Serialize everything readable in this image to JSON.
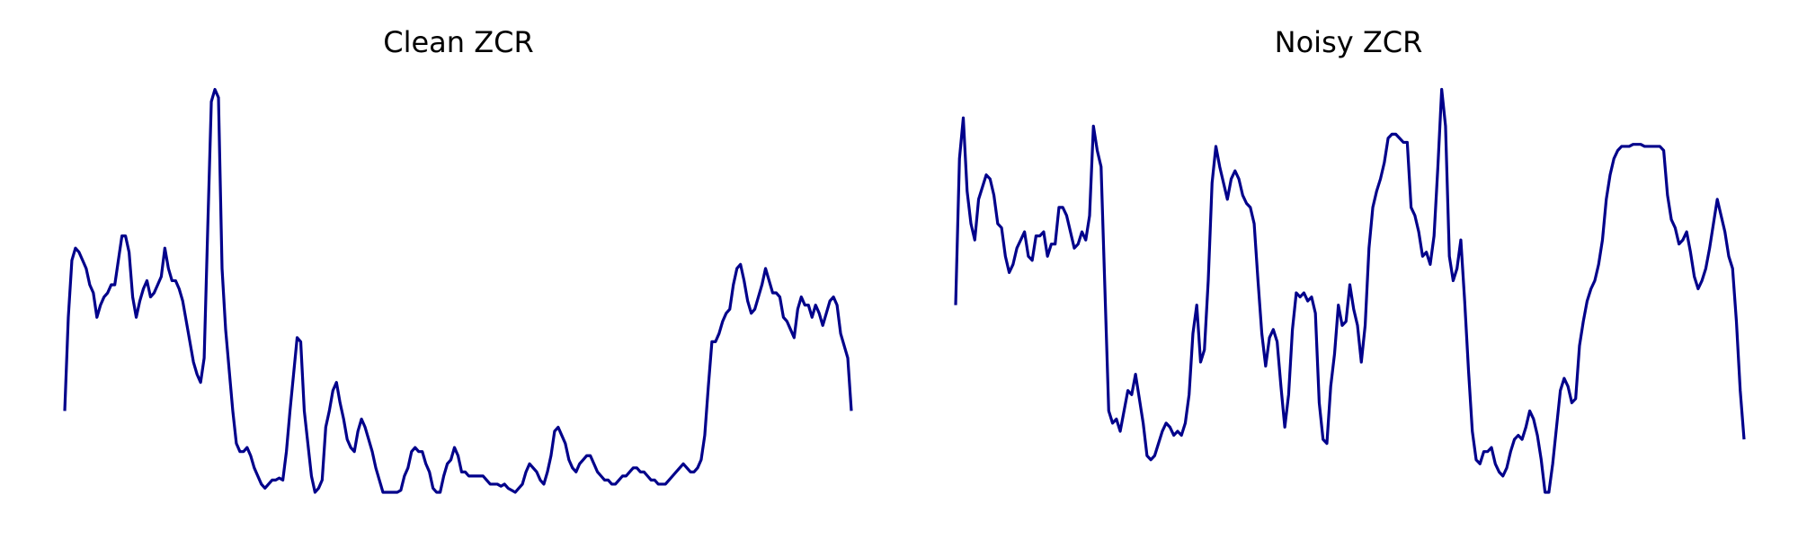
{
  "chart_data": [
    {
      "type": "line",
      "title": "Clean ZCR",
      "xlabel": "",
      "ylabel": "",
      "axes_visible": false,
      "grid": false,
      "line_color": "#00008b",
      "ylim": [
        0.0,
        1.0
      ],
      "series": [
        {
          "values": [
            0.2,
            0.43,
            0.57,
            0.6,
            0.59,
            0.57,
            0.55,
            0.51,
            0.49,
            0.43,
            0.46,
            0.48,
            0.49,
            0.51,
            0.51,
            0.57,
            0.63,
            0.63,
            0.59,
            0.48,
            0.43,
            0.47,
            0.5,
            0.52,
            0.48,
            0.49,
            0.51,
            0.53,
            0.6,
            0.55,
            0.52,
            0.52,
            0.5,
            0.47,
            0.42,
            0.37,
            0.32,
            0.29,
            0.27,
            0.33,
            0.65,
            0.96,
            0.99,
            0.97,
            0.55,
            0.4,
            0.3,
            0.2,
            0.12,
            0.1,
            0.1,
            0.11,
            0.09,
            0.06,
            0.04,
            0.02,
            0.01,
            0.02,
            0.03,
            0.03,
            0.035,
            0.03,
            0.1,
            0.2,
            0.29,
            0.38,
            0.37,
            0.2,
            0.12,
            0.04,
            0.0,
            0.01,
            0.03,
            0.16,
            0.2,
            0.25,
            0.27,
            0.22,
            0.18,
            0.13,
            0.11,
            0.1,
            0.15,
            0.18,
            0.16,
            0.13,
            0.1,
            0.06,
            0.03,
            0.0,
            0.0,
            0.0,
            0.0,
            0.0,
            0.005,
            0.04,
            0.06,
            0.1,
            0.11,
            0.1,
            0.1,
            0.07,
            0.05,
            0.01,
            0.0,
            0.0,
            0.04,
            0.07,
            0.08,
            0.11,
            0.09,
            0.05,
            0.05,
            0.04,
            0.04,
            0.04,
            0.04,
            0.04,
            0.03,
            0.02,
            0.02,
            0.02,
            0.015,
            0.02,
            0.01,
            0.005,
            0.0,
            0.01,
            0.02,
            0.05,
            0.07,
            0.06,
            0.05,
            0.03,
            0.02,
            0.05,
            0.09,
            0.15,
            0.16,
            0.14,
            0.12,
            0.08,
            0.06,
            0.05,
            0.07,
            0.08,
            0.09,
            0.09,
            0.07,
            0.05,
            0.04,
            0.03,
            0.03,
            0.02,
            0.02,
            0.03,
            0.04,
            0.04,
            0.05,
            0.06,
            0.06,
            0.05,
            0.05,
            0.04,
            0.03,
            0.03,
            0.02,
            0.02,
            0.02,
            0.03,
            0.04,
            0.05,
            0.06,
            0.07,
            0.06,
            0.05,
            0.05,
            0.06,
            0.08,
            0.14,
            0.26,
            0.37,
            0.37,
            0.39,
            0.42,
            0.44,
            0.45,
            0.51,
            0.55,
            0.56,
            0.52,
            0.47,
            0.44,
            0.45,
            0.48,
            0.51,
            0.55,
            0.52,
            0.49,
            0.49,
            0.48,
            0.43,
            0.42,
            0.4,
            0.38,
            0.45,
            0.48,
            0.46,
            0.46,
            0.43,
            0.46,
            0.44,
            0.41,
            0.44,
            0.47,
            0.48,
            0.46,
            0.39,
            0.36,
            0.33,
            0.2
          ],
          "x_start": 0,
          "x_step": 1
        }
      ]
    },
    {
      "type": "line",
      "title": "Noisy ZCR",
      "xlabel": "",
      "ylabel": "",
      "axes_visible": false,
      "grid": false,
      "line_color": "#00008b",
      "ylim": [
        0.0,
        1.0
      ],
      "series": [
        {
          "values": [
            0.46,
            0.82,
            0.92,
            0.74,
            0.66,
            0.62,
            0.72,
            0.75,
            0.78,
            0.77,
            0.73,
            0.66,
            0.65,
            0.58,
            0.54,
            0.56,
            0.6,
            0.62,
            0.64,
            0.58,
            0.57,
            0.63,
            0.63,
            0.64,
            0.58,
            0.61,
            0.61,
            0.7,
            0.7,
            0.68,
            0.64,
            0.6,
            0.61,
            0.64,
            0.62,
            0.68,
            0.9,
            0.84,
            0.8,
            0.5,
            0.2,
            0.17,
            0.18,
            0.15,
            0.2,
            0.25,
            0.24,
            0.29,
            0.23,
            0.17,
            0.09,
            0.08,
            0.09,
            0.12,
            0.15,
            0.17,
            0.16,
            0.14,
            0.15,
            0.14,
            0.17,
            0.24,
            0.39,
            0.46,
            0.32,
            0.35,
            0.52,
            0.76,
            0.85,
            0.8,
            0.76,
            0.72,
            0.77,
            0.79,
            0.77,
            0.73,
            0.71,
            0.7,
            0.66,
            0.52,
            0.39,
            0.31,
            0.38,
            0.4,
            0.37,
            0.26,
            0.16,
            0.24,
            0.4,
            0.49,
            0.48,
            0.49,
            0.47,
            0.48,
            0.44,
            0.22,
            0.13,
            0.12,
            0.26,
            0.34,
            0.46,
            0.41,
            0.42,
            0.51,
            0.45,
            0.41,
            0.32,
            0.41,
            0.6,
            0.7,
            0.74,
            0.77,
            0.81,
            0.87,
            0.88,
            0.88,
            0.87,
            0.86,
            0.86,
            0.7,
            0.68,
            0.64,
            0.58,
            0.59,
            0.56,
            0.63,
            0.8,
            0.99,
            0.9,
            0.58,
            0.52,
            0.55,
            0.62,
            0.47,
            0.3,
            0.15,
            0.08,
            0.07,
            0.1,
            0.1,
            0.11,
            0.07,
            0.05,
            0.04,
            0.06,
            0.1,
            0.13,
            0.14,
            0.13,
            0.16,
            0.2,
            0.18,
            0.14,
            0.08,
            0.0,
            0.0,
            0.07,
            0.16,
            0.25,
            0.28,
            0.26,
            0.22,
            0.23,
            0.36,
            0.42,
            0.47,
            0.5,
            0.52,
            0.56,
            0.62,
            0.72,
            0.78,
            0.82,
            0.84,
            0.85,
            0.85,
            0.85,
            0.855,
            0.855,
            0.855,
            0.85,
            0.85,
            0.85,
            0.85,
            0.85,
            0.84,
            0.73,
            0.67,
            0.65,
            0.61,
            0.62,
            0.64,
            0.59,
            0.53,
            0.5,
            0.52,
            0.55,
            0.6,
            0.66,
            0.72,
            0.68,
            0.64,
            0.58,
            0.55,
            0.42,
            0.25,
            0.13
          ],
          "x_start": 0,
          "x_step": 1
        }
      ]
    }
  ]
}
